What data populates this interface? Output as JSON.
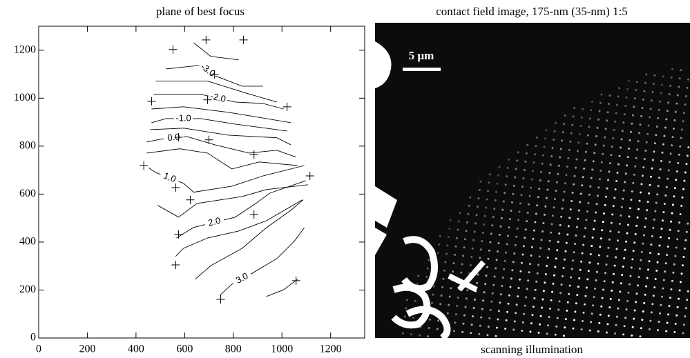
{
  "chart_data": {
    "type": "contour-scatter",
    "title": "plane of best focus",
    "xlim": [
      0,
      1340
    ],
    "ylim": [
      0,
      1300
    ],
    "xticks": [
      0,
      200,
      400,
      600,
      800,
      1000,
      1200
    ],
    "yticks": [
      0,
      200,
      400,
      600,
      800,
      1000,
      1200
    ],
    "points": {
      "x": [
        688,
        842,
        552,
        723,
        464,
        694,
        1021,
        575,
        700,
        885,
        432,
        1115,
        563,
        623,
        885,
        575,
        563,
        1058,
        748
      ],
      "y": [
        1243,
        1243,
        1203,
        1099,
        987,
        993,
        964,
        837,
        826,
        765,
        719,
        676,
        627,
        576,
        515,
        432,
        305,
        239,
        161
      ]
    },
    "contours": [
      {
        "x": [
          637,
          708,
          822
        ],
        "y": [
          1231,
          1174,
          1160
        ]
      },
      {
        "x": [
          523,
          666,
          723,
          836,
          922
        ],
        "y": [
          1122,
          1137,
          1094,
          1050,
          1050
        ],
        "label": "-3.0"
      },
      {
        "x": [
          481,
          694,
          850,
          979
        ],
        "y": [
          1071,
          1071,
          1022,
          984
        ]
      },
      {
        "x": [
          472,
          666,
          808,
          922,
          1007
        ],
        "y": [
          1016,
          1016,
          984,
          978,
          955
        ],
        "label": "-2.0"
      },
      {
        "x": [
          464,
          595,
          780,
          1036
        ],
        "y": [
          955,
          964,
          941,
          898
        ]
      },
      {
        "x": [
          464,
          524,
          666,
          808,
          1021
        ],
        "y": [
          898,
          915,
          915,
          892,
          863
        ],
        "label": "-1.0"
      },
      {
        "x": [
          458,
          597,
          780,
          979,
          1036
        ],
        "y": [
          869,
          875,
          846,
          835,
          806
        ]
      },
      {
        "x": [
          444,
          501,
          609,
          723,
          865,
          979,
          1058
        ],
        "y": [
          817,
          829,
          840,
          806,
          771,
          783,
          754
        ],
        "label": "0.0"
      },
      {
        "x": [
          444,
          580,
          694,
          794,
          907,
          1064
        ],
        "y": [
          771,
          789,
          771,
          705,
          734,
          719
        ]
      },
      {
        "x": [
          452,
          481,
          595,
          637,
          794,
          922,
          1092
        ],
        "y": [
          710,
          690,
          645,
          608,
          633,
          676,
          719
        ],
        "label": "1.0"
      },
      {
        "x": [
          489,
          575,
          651,
          836,
          936,
          1107
        ],
        "y": [
          553,
          504,
          561,
          590,
          619,
          639
        ]
      },
      {
        "x": [
          566,
          637,
          808,
          893,
          950,
          1098
        ],
        "y": [
          417,
          461,
          504,
          561,
          604,
          656
        ],
        "label": "2.0"
      },
      {
        "x": [
          563,
          595,
          694,
          822,
          936,
          1084
        ],
        "y": [
          340,
          374,
          417,
          446,
          489,
          576
        ]
      },
      {
        "x": [
          643,
          708,
          836,
          936,
          1036,
          1087
        ],
        "y": [
          245,
          302,
          374,
          460,
          532,
          576
        ]
      },
      {
        "x": [
          745,
          794,
          879,
          979,
          1050,
          1092
        ],
        "y": [
          178,
          224,
          271,
          331,
          403,
          460
        ],
        "label": "3.0"
      },
      {
        "x": [
          936,
          1007,
          1064
        ],
        "y": [
          173,
          201,
          245
        ]
      }
    ]
  },
  "image": {
    "title": "contact field image, 175-nm (35-nm) 1:5",
    "scale_bar": "5 µm",
    "caption": "scanning illumination"
  }
}
